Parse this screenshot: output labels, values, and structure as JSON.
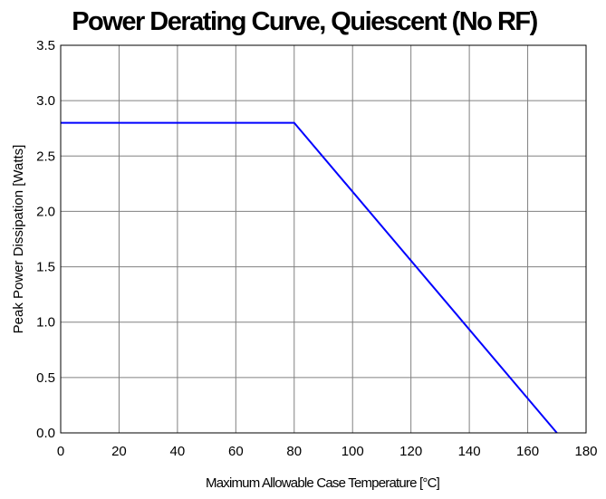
{
  "chart_data": {
    "type": "line",
    "title": "Power Derating Curve, Quiescent (No RF)",
    "xlabel": "Maximum Allowable Case Temperature [°C]",
    "ylabel": "Peak Power Dissipation [Watts]",
    "xlim": [
      0,
      180
    ],
    "ylim": [
      0,
      3.5
    ],
    "xticks": [
      "0",
      "20",
      "40",
      "60",
      "80",
      "100",
      "120",
      "140",
      "160",
      "180"
    ],
    "yticks": [
      "0.0",
      "0.5",
      "1.0",
      "1.5",
      "2.0",
      "2.5",
      "3.0",
      "3.5"
    ],
    "grid": true,
    "legend": "none",
    "series": [
      {
        "x": [
          0,
          80,
          170
        ],
        "y": [
          2.8,
          2.8,
          0.0
        ],
        "color": "#0000ff"
      }
    ]
  }
}
